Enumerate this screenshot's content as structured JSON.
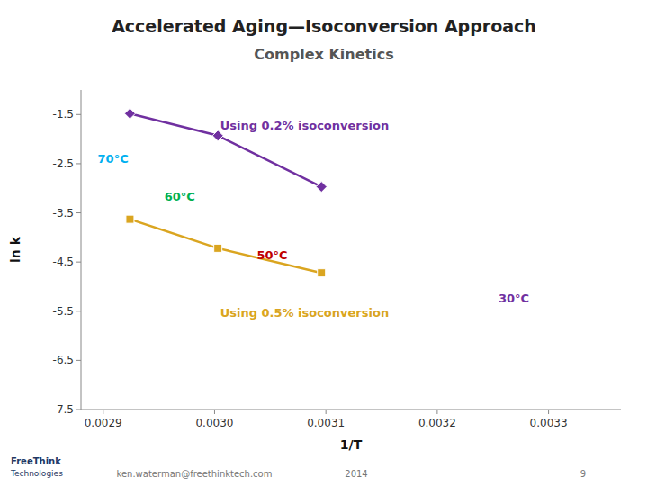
{
  "chart_data": {
    "type": "line",
    "title": "Accelerated Aging—Isoconversion Approach",
    "subtitle": "Complex Kinetics",
    "x_label": "1/T",
    "y_label": "ln k",
    "xlim": [
      0.00288,
      0.003365
    ],
    "ylim": [
      -7.5,
      -1.0
    ],
    "xticks": [
      0.0029,
      {
        "value": 0.003,
        "label": "0.0030"
      },
      0.0031,
      0.0032,
      0.0033
    ],
    "yticks": [
      -7.5,
      -6.5,
      -5.5,
      -4.5,
      -3.5,
      -2.5,
      -1.5
    ],
    "grid": false,
    "x": [
      0.002924,
      0.003003,
      0.003096
    ],
    "series": [
      {
        "values": [
          -1.48,
          -1.93,
          -2.97
        ],
        "color": "#7030A0",
        "marker": "diamond"
      },
      {
        "values": [
          -3.63,
          -4.22,
          -4.72
        ],
        "color": "#DAA520",
        "marker": "square"
      }
    ],
    "annotations": [
      {
        "text": "Using 0.2% isoconversion",
        "x": 0.003005,
        "y": -1.75,
        "color": "#7030A0"
      },
      {
        "text": "Using 0.5% isoconversion",
        "x": 0.003005,
        "y": -5.55,
        "color": "#DAA520"
      },
      {
        "text": "70°C",
        "x": 0.002895,
        "y": -2.42,
        "color": "#00B0F0"
      },
      {
        "text": "60°C",
        "x": 0.002955,
        "y": -3.18,
        "color": "#00B050"
      },
      {
        "text": "50°C",
        "x": 0.003038,
        "y": -4.38,
        "color": "#C00000"
      },
      {
        "text": "30°C",
        "x": 0.003255,
        "y": -5.25,
        "color": "#7030A0"
      }
    ],
    "footer": [
      "ken.waterman@freethinktech.com",
      "2014",
      "9"
    ],
    "logo": [
      "FreeThink",
      "Technologies"
    ]
  }
}
